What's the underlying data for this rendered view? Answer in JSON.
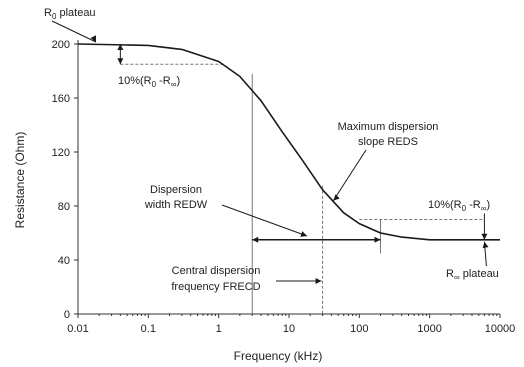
{
  "chart_data": {
    "type": "line",
    "xlabel": "Frequency (kHz)",
    "ylabel": "Resistance (Ohm)",
    "x_scale": "log",
    "xlim": [
      0.01,
      10000
    ],
    "ylim": [
      0,
      200
    ],
    "x_ticks": [
      "0.01",
      "0.1",
      "1",
      "10",
      "100",
      "1000",
      "10000"
    ],
    "y_ticks": [
      "0",
      "40",
      "80",
      "120",
      "160",
      "200"
    ],
    "grid": false,
    "series": [
      {
        "x": [
          0.01,
          0.1,
          0.3,
          1,
          2,
          4,
          8,
          15,
          30,
          60,
          100,
          200,
          400,
          1000,
          3000,
          6000,
          10000
        ],
        "y": [
          200,
          199,
          196,
          187,
          176,
          158,
          135,
          115,
          92,
          75,
          67,
          60,
          57,
          55,
          55,
          55,
          55
        ]
      }
    ],
    "annotations": {
      "r0_plateau": {
        "text": "R",
        "sub": "0",
        "suffix": " plateau"
      },
      "pct_top": {
        "prefix": "10%(R",
        "sub1": "0",
        "mid": " -R",
        "sub2": "∞",
        "suffix": ")"
      },
      "max_slope_1": "Maximum dispersion",
      "max_slope_2": "slope REDS",
      "width_1": "Dispersion",
      "width_2": "width REDW",
      "pct_right": {
        "prefix": "10%(R",
        "sub1": "0",
        "mid": " -R",
        "sub2": "∞",
        "suffix": ")"
      },
      "rinf_plateau": {
        "text": "R",
        "sub": "∞",
        "suffix": " plateau"
      },
      "central_1": "Central dispersion",
      "central_2": "frequency FRECD"
    },
    "markers": {
      "width_left_freq": 3,
      "width_right_freq": 200,
      "central_freq": 30,
      "pct_top_freq": 0.04,
      "pct_top_upper": 200,
      "pct_top_lower": 185,
      "plateau_inf_freq": 6000,
      "pct_right_upper": 70,
      "pct_right_lower": 55,
      "width_resistance": 55
    },
    "colors": {
      "line": "#1a1a1a",
      "axis": "#333333",
      "guide": "#777777"
    }
  }
}
